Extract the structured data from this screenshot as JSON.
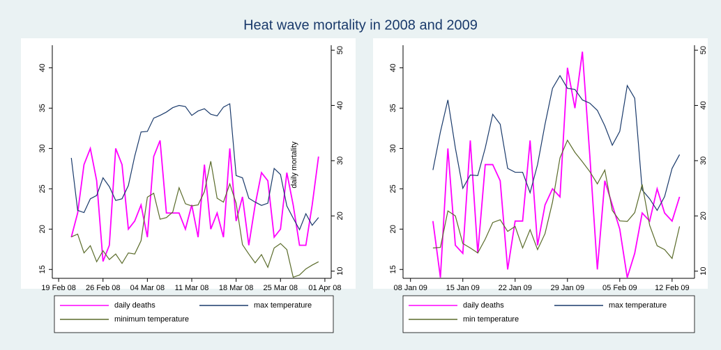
{
  "title": "Heat wave mortality in 2008 and 2009",
  "chart_data": [
    {
      "type": "line",
      "x": [
        "2008-02-21",
        "2008-02-22",
        "2008-02-23",
        "2008-02-24",
        "2008-02-25",
        "2008-02-26",
        "2008-02-27",
        "2008-02-28",
        "2008-02-29",
        "2008-03-01",
        "2008-03-02",
        "2008-03-03",
        "2008-03-04",
        "2008-03-05",
        "2008-03-06",
        "2008-03-07",
        "2008-03-08",
        "2008-03-09",
        "2008-03-10",
        "2008-03-11",
        "2008-03-12",
        "2008-03-13",
        "2008-03-14",
        "2008-03-15",
        "2008-03-16",
        "2008-03-17",
        "2008-03-18",
        "2008-03-19",
        "2008-03-20",
        "2008-03-21",
        "2008-03-22",
        "2008-03-23",
        "2008-03-24",
        "2008-03-25",
        "2008-03-26",
        "2008-03-27",
        "2008-03-28",
        "2008-03-29",
        "2008-03-30",
        "2008-03-31"
      ],
      "xlim": [
        "2008-02-18",
        "2008-04-02"
      ],
      "xticks": [
        {
          "value": "2008-02-19",
          "label": "19 Feb 08"
        },
        {
          "value": "2008-02-26",
          "label": "26 Feb 08"
        },
        {
          "value": "2008-03-04",
          "label": "04 Mar 08"
        },
        {
          "value": "2008-03-11",
          "label": "11 Mar 08"
        },
        {
          "value": "2008-03-18",
          "label": "18 Mar 08"
        },
        {
          "value": "2008-03-25",
          "label": "25 Mar 08"
        },
        {
          "value": "2008-04-01",
          "label": "01 Apr 08"
        }
      ],
      "ylim": [
        13.9,
        42.8
      ],
      "yticks": [
        15,
        20,
        25,
        30,
        35,
        40
      ],
      "y2lim": [
        8.7,
        50.9
      ],
      "y2ticks": [
        10,
        20,
        30,
        40,
        50
      ],
      "y2label": "daily mortality",
      "series": [
        {
          "name": "daily deaths",
          "color": "#ff00ff",
          "values": [
            19,
            22,
            28,
            30,
            26,
            16,
            18,
            30,
            28,
            20,
            21,
            23,
            19,
            29,
            31,
            22,
            22,
            22,
            20,
            23,
            19,
            28,
            20,
            22,
            19,
            30,
            21,
            24,
            18,
            23,
            27,
            26,
            19,
            20,
            27,
            23,
            18,
            18,
            23,
            29
          ]
        },
        {
          "name": "max temperature",
          "color": "#1a3a6b",
          "axis": "y2",
          "values": [
            30.5,
            21.0,
            20.6,
            23.1,
            23.7,
            26.9,
            25.3,
            22.8,
            23.1,
            25.5,
            30.8,
            35.2,
            35.3,
            37.7,
            38.2,
            38.8,
            39.6,
            40.0,
            39.8,
            38.2,
            39.0,
            39.4,
            38.4,
            38.1,
            39.7,
            40.3,
            27.3,
            26.9,
            23.2,
            22.5,
            21.9,
            22.3,
            28.6,
            27.5,
            21.8,
            19.6,
            17.5,
            20.4,
            18.3,
            19.7
          ]
        },
        {
          "name": "minimum temperature",
          "color": "#5a6b2a",
          "axis": "y2",
          "values": [
            16.2,
            16.7,
            13.3,
            14.6,
            11.7,
            13.7,
            12.1,
            13.1,
            11.4,
            13.3,
            13.1,
            15.5,
            23.4,
            24.1,
            19.4,
            19.7,
            20.7,
            25.1,
            22.2,
            21.8,
            22.0,
            24.4,
            29.9,
            23.2,
            22.5,
            25.8,
            22.3,
            14.8,
            13.1,
            11.5,
            13.0,
            10.7,
            14.2,
            15.0,
            13.9,
            8.9,
            9.3,
            10.4,
            11.1,
            11.7
          ]
        }
      ]
    },
    {
      "type": "line",
      "x": [
        "2009-01-11",
        "2009-01-12",
        "2009-01-13",
        "2009-01-14",
        "2009-01-15",
        "2009-01-16",
        "2009-01-17",
        "2009-01-18",
        "2009-01-19",
        "2009-01-20",
        "2009-01-21",
        "2009-01-22",
        "2009-01-23",
        "2009-01-24",
        "2009-01-25",
        "2009-01-26",
        "2009-01-27",
        "2009-01-28",
        "2009-01-29",
        "2009-01-30",
        "2009-01-31",
        "2009-02-01",
        "2009-02-02",
        "2009-02-03",
        "2009-02-04",
        "2009-02-05",
        "2009-02-06",
        "2009-02-07",
        "2009-02-08",
        "2009-02-09",
        "2009-02-10",
        "2009-02-11",
        "2009-02-12",
        "2009-02-13"
      ],
      "xlim": [
        "2009-01-07",
        "2009-02-15"
      ],
      "xticks": [
        {
          "value": "2009-01-08",
          "label": "08 Jan 09"
        },
        {
          "value": "2009-01-15",
          "label": "15 Jan 09"
        },
        {
          "value": "2009-01-22",
          "label": "22 Jan 09"
        },
        {
          "value": "2009-01-29",
          "label": "29 Jan 09"
        },
        {
          "value": "2009-02-05",
          "label": "05 Feb 09"
        },
        {
          "value": "2009-02-12",
          "label": "12 Feb 09"
        }
      ],
      "ylim": [
        13.9,
        42.8
      ],
      "yticks": [
        15,
        20,
        25,
        30,
        35,
        40
      ],
      "y2lim": [
        8.7,
        50.9
      ],
      "y2ticks": [
        10,
        20,
        30,
        40,
        50
      ],
      "series": [
        {
          "name": "daily deaths",
          "color": "#ff00ff",
          "values": [
            21,
            14,
            30,
            18,
            17,
            31,
            17,
            28,
            28,
            26,
            15,
            21,
            21,
            31,
            18,
            23,
            25,
            24,
            40,
            35,
            42,
            29,
            15,
            26,
            23,
            20,
            14,
            17,
            22,
            21,
            25,
            22,
            21,
            24
          ]
        },
        {
          "name": "max temperature",
          "color": "#1a3a6b",
          "axis": "y2",
          "values": [
            28.3,
            35.2,
            41.0,
            32.3,
            25.0,
            27.4,
            27.3,
            32.3,
            38.4,
            36.6,
            28.6,
            27.9,
            27.9,
            24.2,
            29.3,
            36.6,
            43.1,
            45.4,
            43.1,
            42.9,
            41.0,
            40.4,
            39.1,
            36.3,
            32.8,
            35.3,
            43.6,
            41.3,
            24.7,
            23.1,
            21.0,
            23.5,
            28.6,
            31.1
          ]
        },
        {
          "name": "min temperature",
          "color": "#5a6b2a",
          "axis": "y2",
          "values": [
            14.2,
            14.3,
            20.9,
            20.0,
            15.0,
            14.2,
            13.3,
            15.8,
            18.8,
            19.3,
            17.2,
            18.1,
            14.2,
            17.5,
            13.9,
            16.8,
            22.5,
            30.5,
            33.7,
            31.5,
            29.8,
            28.0,
            25.8,
            28.3,
            21.0,
            19.1,
            19.0,
            20.6,
            25.7,
            18.3,
            14.6,
            13.9,
            12.3,
            18.1
          ]
        }
      ]
    }
  ]
}
